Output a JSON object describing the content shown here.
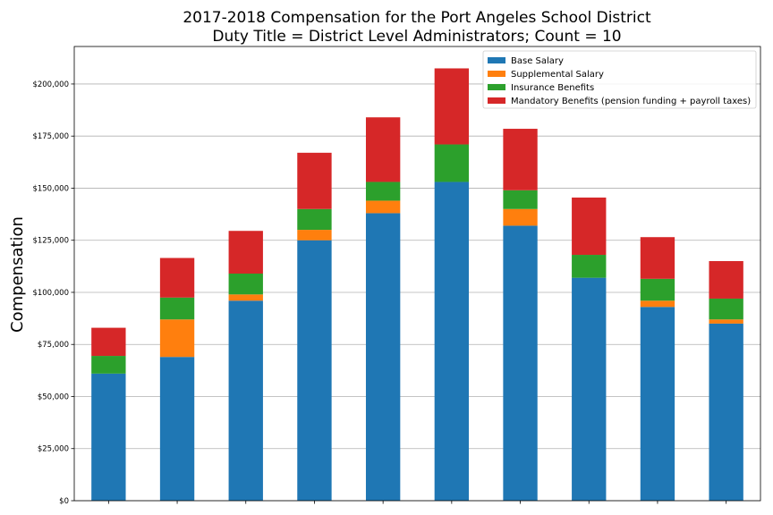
{
  "chart_data": {
    "type": "bar",
    "stacked": true,
    "title": "2017-2018 Compensation for the Port Angeles School District",
    "subtitle": "Duty Title = District Level Administrators; Count = 10",
    "xlabel": "",
    "ylabel": "Compensation",
    "ylim": [
      0,
      218000
    ],
    "yticks": [
      0,
      25000,
      50000,
      75000,
      100000,
      125000,
      150000,
      175000,
      200000
    ],
    "ytick_labels": [
      "$0",
      "$25,000",
      "$50,000",
      "$75,000",
      "$100,000",
      "$125,000",
      "$150,000",
      "$175,000",
      "$200,000"
    ],
    "grid": "horizontal",
    "legend_position": "top-right",
    "categories": [
      "",
      "",
      "",
      "",
      "",
      "",
      "",
      "",
      "",
      ""
    ],
    "series": [
      {
        "name": "Base Salary",
        "color": "#1f77b4",
        "values": [
          61000,
          69000,
          96000,
          125000,
          138000,
          153000,
          132000,
          107000,
          93000,
          85000
        ]
      },
      {
        "name": "Supplemental Salary",
        "color": "#ff7f0e",
        "values": [
          0,
          18000,
          3000,
          5000,
          6000,
          0,
          8000,
          0,
          3000,
          2000
        ]
      },
      {
        "name": "Insurance Benefits",
        "color": "#2ca02c",
        "values": [
          8500,
          10500,
          10000,
          10000,
          9000,
          18000,
          9000,
          11000,
          10500,
          10000
        ]
      },
      {
        "name": "Mandatory Benefits (pension funding + payroll taxes)",
        "color": "#d62728",
        "values": [
          13500,
          19000,
          20500,
          27000,
          31000,
          36500,
          29500,
          27500,
          20000,
          18000
        ]
      }
    ]
  }
}
